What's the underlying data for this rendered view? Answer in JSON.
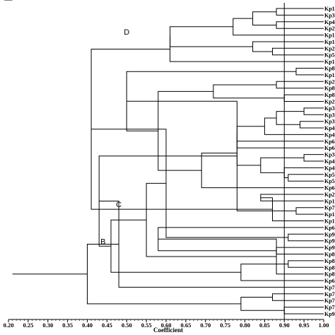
{
  "chart_data": {
    "type": "dendrogram",
    "xlabel": "Coefficient",
    "xlim": [
      0.2,
      1.0
    ],
    "ticks": [
      "0.20",
      "0.25",
      "0.30",
      "0.35",
      "0.40",
      "0.45",
      "0.50",
      "0.55",
      "0.60",
      "0.65",
      "0.70",
      "0.75",
      "0.80",
      "0.85",
      "0.90",
      "0.95",
      "1.00"
    ],
    "threshold": 0.9,
    "leaves": [
      "Kp1",
      "Kp3",
      "Kp4",
      "Kp2",
      "Kp1",
      "Kp1",
      "Kp2",
      "Kp5",
      "Kp1",
      "Kp8",
      "Kp1",
      "Kp2",
      "Kp8",
      "Kp8",
      "Kp2",
      "Kp3",
      "Kp3",
      "Kp3",
      "Kp4",
      "Kp4",
      "Kp6",
      "Kp6",
      "Kp3",
      "Kp4",
      "Kp4",
      "Kp5",
      "Kp5",
      "Kp6",
      "Kp2",
      "Kp1",
      "Kp7",
      "Kp1",
      "Kp1",
      "Kp6",
      "Kp9",
      "Kp9",
      "Kp9",
      "Kp8",
      "Kp8",
      "Kp8",
      "Kp8",
      "Kp6",
      "Kp7",
      "Kp7",
      "Kp7",
      "Kp7",
      "Kp9"
    ],
    "merges": [
      [
        0,
        1,
        0.88
      ],
      [
        2,
        3,
        0.88
      ],
      [
        48,
        47,
        0.82
      ],
      [
        49,
        4,
        0.77
      ],
      [
        6,
        7,
        0.87
      ],
      [
        51,
        5,
        0.82
      ],
      [
        50,
        52,
        0.61
      ],
      [
        53,
        8,
        0.61
      ],
      [
        9,
        10,
        0.93
      ],
      [
        11,
        12,
        0.88
      ],
      [
        13,
        14,
        0.9
      ],
      [
        56,
        57,
        0.72
      ],
      [
        15,
        16,
        0.95
      ],
      [
        17,
        18,
        0.94
      ],
      [
        59,
        60,
        0.88
      ],
      [
        61,
        19,
        0.85
      ],
      [
        62,
        20,
        0.78
      ],
      [
        63,
        21,
        0.78
      ],
      [
        22,
        23,
        0.95
      ],
      [
        25,
        26,
        0.91
      ],
      [
        24,
        66,
        0.9
      ],
      [
        65,
        67,
        0.84
      ],
      [
        64,
        68,
        0.78
      ],
      [
        69,
        27,
        0.69
      ],
      [
        58,
        70,
        0.58
      ],
      [
        55,
        71,
        0.5
      ],
      [
        28,
        29,
        0.84
      ],
      [
        30,
        31,
        0.93
      ],
      [
        73,
        32,
        0.87
      ],
      [
        72,
        74,
        0.78
      ],
      [
        54,
        75,
        0.41
      ],
      [
        34,
        35,
        0.91
      ],
      [
        36,
        37,
        0.88
      ],
      [
        77,
        78,
        0.6
      ],
      [
        33,
        79,
        0.58
      ],
      [
        38,
        39,
        0.91
      ],
      [
        40,
        81,
        0.88
      ],
      [
        82,
        41,
        0.79
      ],
      [
        80,
        83,
        0.55
      ],
      [
        84,
        85,
        0.46
      ],
      [
        76,
        86,
        0.43
      ],
      [
        43,
        44,
        0.87
      ],
      [
        45,
        46,
        0.9
      ],
      [
        88,
        89,
        0.79
      ],
      [
        42,
        87,
        0.48
      ],
      [
        90,
        91,
        0.4
      ],
      [
        92,
        93,
        0.21
      ]
    ],
    "clusters": [
      {
        "label": "A",
        "at": 0.37,
        "node": 93
      },
      {
        "label": "B",
        "at": 0.44,
        "node": 86
      },
      {
        "label": "C",
        "at": 0.48,
        "node": 75
      },
      {
        "label": "D",
        "at": 0.5,
        "node": 53
      }
    ]
  }
}
